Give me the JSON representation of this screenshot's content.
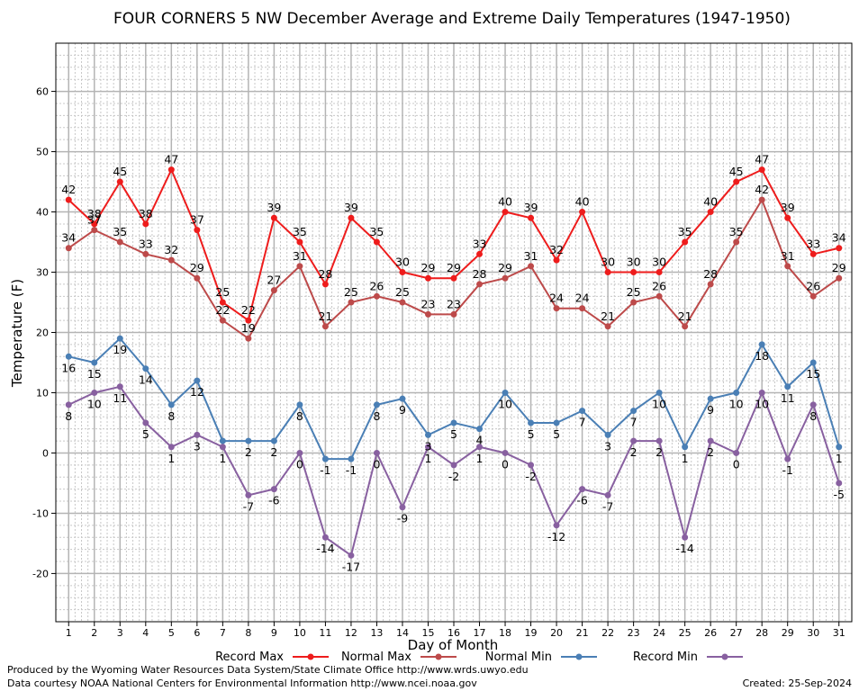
{
  "chart_data": {
    "type": "line",
    "title": "FOUR CORNERS 5 NW December Average and Extreme Daily Temperatures (1947-1950)",
    "xlabel": "Day of Month",
    "ylabel": "Temperature (F)",
    "x": [
      1,
      2,
      3,
      4,
      5,
      6,
      7,
      8,
      9,
      10,
      11,
      12,
      13,
      14,
      15,
      16,
      17,
      18,
      19,
      20,
      21,
      22,
      23,
      24,
      25,
      26,
      27,
      28,
      29,
      30,
      31
    ],
    "xlim": [
      0.5,
      31.5
    ],
    "ylim": [
      -28,
      68
    ],
    "yticks": [
      -20,
      -10,
      0,
      10,
      20,
      30,
      40,
      50,
      60
    ],
    "grid": true,
    "legend_position": "bottom",
    "series": [
      {
        "name": "Record Max",
        "color": "#ee1c1c",
        "values": [
          42,
          38,
          45,
          38,
          47,
          37,
          25,
          22,
          39,
          35,
          28,
          39,
          35,
          30,
          29,
          29,
          33,
          40,
          39,
          32,
          40,
          30,
          30,
          30,
          35,
          40,
          45,
          47,
          39,
          33,
          34
        ]
      },
      {
        "name": "Normal Max",
        "color": "#bd4a4a",
        "values": [
          34,
          37,
          35,
          33,
          32,
          29,
          22,
          19,
          27,
          31,
          21,
          25,
          26,
          25,
          23,
          23,
          28,
          29,
          31,
          24,
          24,
          21,
          25,
          26,
          21,
          28,
          35,
          42,
          31,
          26,
          29
        ]
      },
      {
        "name": "Normal Min",
        "color": "#4a7fb5",
        "values": [
          16,
          15,
          19,
          14,
          8,
          12,
          2,
          2,
          2,
          8,
          -1,
          -1,
          8,
          9,
          3,
          5,
          4,
          10,
          5,
          5,
          7,
          3,
          7,
          10,
          1,
          9,
          10,
          18,
          11,
          15,
          1
        ]
      },
      {
        "name": "Record Min",
        "color": "#8860a0",
        "values": [
          8,
          10,
          11,
          5,
          1,
          3,
          1,
          -7,
          -6,
          0,
          -14,
          -17,
          0,
          -9,
          1,
          -2,
          1,
          0,
          -2,
          -12,
          -6,
          -7,
          2,
          2,
          -14,
          2,
          0,
          10,
          -1,
          8,
          -5
        ]
      }
    ],
    "value_labels": {
      "Record Max": [
        "42",
        "38",
        "45",
        "38",
        "47",
        "37",
        "25",
        "22",
        "39",
        "35",
        "28",
        "39",
        "35",
        "30",
        "29",
        "29",
        "33",
        "40",
        "39",
        "32",
        "40",
        "30",
        "30",
        "30",
        "35",
        "40",
        "45",
        "47",
        "39",
        "33",
        "34"
      ],
      "Normal Max": [
        "34",
        "37",
        "35",
        "33",
        "32",
        "29",
        "22",
        "19",
        "27",
        "31",
        "21",
        "25",
        "26",
        "25",
        "23",
        "23",
        "28",
        "29",
        "31",
        "24",
        "24",
        "21",
        "25",
        "26",
        "21",
        "28",
        "35",
        "42",
        "31",
        "26",
        "29"
      ],
      "Normal Min": [
        "16",
        "15",
        "19",
        "14",
        "8",
        "12",
        "",
        "2",
        "2",
        "8",
        "-1",
        "-1",
        "8",
        "9",
        "3",
        "5",
        "4",
        "10",
        "5",
        "5",
        "7",
        "3",
        "7",
        "10",
        "1",
        "9",
        "10",
        "18",
        "11",
        "15",
        "1"
      ],
      "Record Min": [
        "8",
        "10",
        "11",
        "5",
        "1",
        "3",
        "1",
        "-7",
        "-6",
        "0",
        "-14",
        "-17",
        "0",
        "-9",
        "1",
        "-2",
        "1",
        "0",
        "-2",
        "-12",
        "-6",
        "-7",
        "2",
        "2",
        "-14",
        "2",
        "0",
        "10",
        "-1",
        "8",
        "-5"
      ]
    }
  },
  "footer": {
    "produced_by": "Produced by the Wyoming Water Resources Data System/State Climate Office http://www.wrds.uwyo.edu",
    "courtesy": "Data courtesy NOAA National Centers for Environmental Information http://www.ncei.noaa.gov",
    "created": "Created:  25-Sep-2024"
  }
}
